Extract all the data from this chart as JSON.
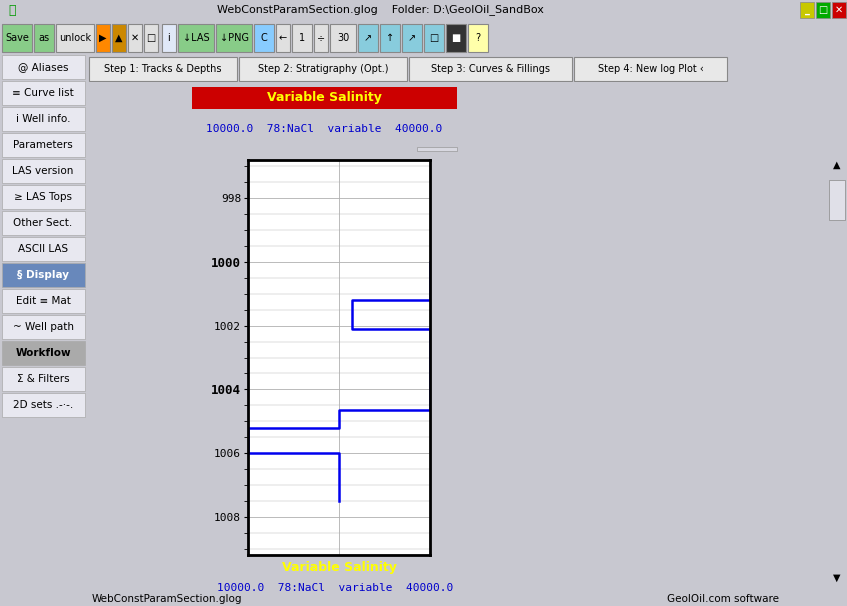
{
  "title": "Variable Salinity",
  "subtitle": "10000.0  78:NaCl  variable  40000.0",
  "title_bg": "#cc0000",
  "title_fg": "#ffff00",
  "subtitle_color": "#0000cc",
  "plot_bg": "#ffffff",
  "outer_bg": "#c8c8d0",
  "panel_bg": "#dcdce8",
  "left_panel_bg": "#d0d0dc",
  "white_panel_bg": "#ffffff",
  "line_color": "#0000ee",
  "line_width": 1.8,
  "ylim": [
    1009.2,
    996.8
  ],
  "xlim_log": [
    10000,
    40000
  ],
  "yticks": [
    998,
    1000,
    1002,
    1004,
    1006,
    1008
  ],
  "ytick_bold": [
    1000,
    1004
  ],
  "grid_color": "#b0b0b0",
  "grid_lw": 0.6,
  "curve_x": [
    40000,
    40000,
    22000,
    22000,
    40000,
    40000,
    20000,
    20000,
    10000,
    10000,
    20000,
    20000
  ],
  "curve_y": [
    1000.0,
    1001.2,
    1001.2,
    1002.1,
    1002.1,
    1004.65,
    1004.65,
    1005.2,
    1005.2,
    1006.0,
    1006.0,
    1007.5
  ],
  "window_title": "WebConstParamSection.glog    Folder: D:\\GeolOil_SandBox",
  "footer_left": "WebConstParamSection.glog",
  "footer_right": "GeolOil.com software",
  "tab_labels": [
    "Step 1: Tracks & Depths",
    "Step 2: Stratigraphy (Opt.)",
    "Step 3: Curves & Fillings",
    "Step 4: New log Plot ‹"
  ],
  "left_menu": [
    "@ Aliases",
    "≡ Curve list",
    "i Well info.",
    "Parameters",
    "LAS version",
    "≥ LAS Tops",
    "Other Sect.",
    "ASCII LAS",
    "§ Display",
    "Edit ≡ Mat",
    "~ Well path",
    "Workflow",
    "Σ & Filters",
    "2D sets .-·-."
  ]
}
